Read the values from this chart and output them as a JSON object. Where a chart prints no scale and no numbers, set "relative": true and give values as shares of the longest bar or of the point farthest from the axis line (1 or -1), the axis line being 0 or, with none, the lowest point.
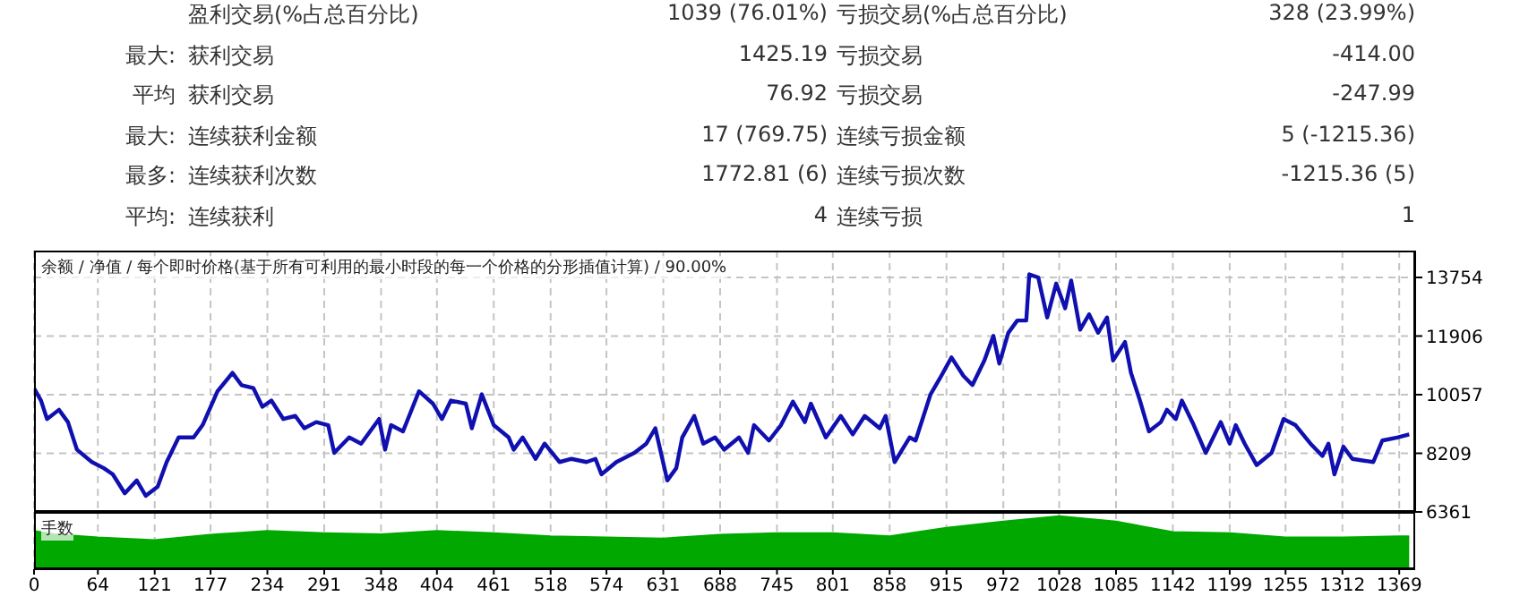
{
  "chart_data": [
    {
      "type": "other",
      "annotations": [
        "盈利交易(%占总百分比)",
        "1039 (76.01%)",
        "亏损交易(%占总百分比)",
        "328 (23.99%)",
        "最大:",
        "获利交易",
        "1425.19",
        "亏损交易",
        "-414.00",
        "平均",
        "获利交易",
        "76.92",
        "亏损交易",
        "-247.99",
        "最大:",
        "连续获利金额",
        "17 (769.75)",
        "连续亏损金额",
        "5 (-1215.36)",
        "最多:",
        "连续获利次数",
        "1772.81 (6)",
        "连续亏损次数",
        "-1215.36 (5)",
        "平均:",
        "连续获利",
        "4",
        "连续亏损",
        "1"
      ]
    },
    {
      "type": "line",
      "title": "余额 / 净值 / 每个即时价格(基于所有可利用的最小时段的每一个价格的分形插值计算) / 90.00%",
      "x": [
        0,
        7,
        13,
        25,
        34,
        43,
        58,
        70,
        79,
        91,
        103,
        112,
        124,
        133,
        145,
        160,
        169,
        184,
        199,
        208,
        220,
        229,
        238,
        250,
        262,
        271,
        283,
        295,
        301,
        316,
        328,
        346,
        352,
        358,
        370,
        386,
        400,
        409,
        418,
        433,
        439,
        449,
        461,
        476,
        481,
        490,
        503,
        512,
        527,
        539,
        554,
        563,
        569,
        584,
        602,
        614,
        623,
        635,
        644,
        650,
        662,
        671,
        683,
        692,
        707,
        716,
        722,
        737,
        749,
        761,
        773,
        779,
        794,
        809,
        821,
        833,
        848,
        854,
        863,
        878,
        884,
        899,
        908,
        920,
        932,
        941,
        953,
        962,
        968,
        977,
        986,
        995,
        998,
        1007,
        1016,
        1025,
        1034,
        1040,
        1049,
        1058,
        1067,
        1076,
        1082,
        1094,
        1100,
        1109,
        1118,
        1130,
        1136,
        1145,
        1151,
        1163,
        1175,
        1190,
        1199,
        1205,
        1214,
        1226,
        1241,
        1253,
        1265,
        1280,
        1292,
        1298,
        1304,
        1313,
        1322,
        1343,
        1352,
        1367,
        1379
      ],
      "series": [
        {
          "color": "#1010b0",
          "values": [
            10262,
            9872,
            9290,
            9581,
            9193,
            8324,
            7934,
            7740,
            7546,
            6947,
            7353,
            6869,
            7160,
            7934,
            8708,
            8708,
            9096,
            10164,
            10746,
            10360,
            10262,
            9678,
            9872,
            9290,
            9387,
            8999,
            9193,
            9096,
            8223,
            8708,
            8514,
            9290,
            8324,
            9096,
            8902,
            10164,
            9775,
            9290,
            9872,
            9775,
            8999,
            10068,
            9096,
            8708,
            8324,
            8708,
            8033,
            8514,
            7934,
            8033,
            7934,
            8033,
            7546,
            7934,
            8223,
            8514,
            8999,
            7353,
            7740,
            8708,
            9387,
            8514,
            8708,
            8324,
            8708,
            8223,
            9096,
            8611,
            9096,
            9837,
            9193,
            9775,
            8708,
            9387,
            8805,
            9387,
            8999,
            9387,
            7934,
            8708,
            8611,
            10068,
            10552,
            11232,
            10650,
            10360,
            11135,
            11910,
            11038,
            12008,
            12395,
            12395,
            13851,
            13754,
            12492,
            13560,
            12783,
            13657,
            12105,
            12590,
            12008,
            12492,
            11135,
            11717,
            10746,
            9872,
            8902,
            9193,
            9581,
            9290,
            9872,
            9096,
            8223,
            9193,
            8514,
            9096,
            8514,
            7837,
            8223,
            9290,
            9096,
            8514,
            8126,
            8514,
            7546,
            8417,
            8033,
            7934,
            8611,
            8708,
            8805
          ]
        }
      ],
      "xlim": [
        0,
        1385
      ],
      "xticks": [
        0,
        64,
        121,
        177,
        234,
        291,
        348,
        404,
        461,
        518,
        574,
        631,
        688,
        745,
        801,
        858,
        915,
        972,
        1028,
        1085,
        1142,
        1199,
        1255,
        1312,
        1369
      ],
      "ylim": [
        6361,
        14600
      ],
      "yticks": [
        6361,
        8209,
        10057,
        11906,
        13754
      ],
      "grid": true,
      "tick_labels": "y"
    },
    {
      "type": "area",
      "title": "手数",
      "relative": true,
      "x": [
        0,
        20,
        64,
        121,
        177,
        234,
        291,
        348,
        404,
        461,
        518,
        574,
        631,
        688,
        745,
        801,
        858,
        915,
        972,
        1028,
        1085,
        1142,
        1199,
        1255,
        1312,
        1369,
        1379
      ],
      "series": [
        {
          "color": "#00a800",
          "values": [
            0.72,
            0.66,
            0.6,
            0.55,
            0.65,
            0.72,
            0.68,
            0.66,
            0.72,
            0.68,
            0.62,
            0.6,
            0.58,
            0.65,
            0.68,
            0.68,
            0.62,
            0.78,
            0.9,
            1,
            0.9,
            0.7,
            0.68,
            0.6,
            0.6,
            0.62,
            0.62
          ]
        }
      ],
      "xlim": [
        0,
        1385
      ],
      "xticks": [
        0,
        64,
        121,
        177,
        234,
        291,
        348,
        404,
        461,
        518,
        574,
        631,
        688,
        745,
        801,
        858,
        915,
        972,
        1028,
        1085,
        1142,
        1199,
        1255,
        1312,
        1369
      ],
      "grid": "x",
      "tick_labels": "x"
    }
  ]
}
